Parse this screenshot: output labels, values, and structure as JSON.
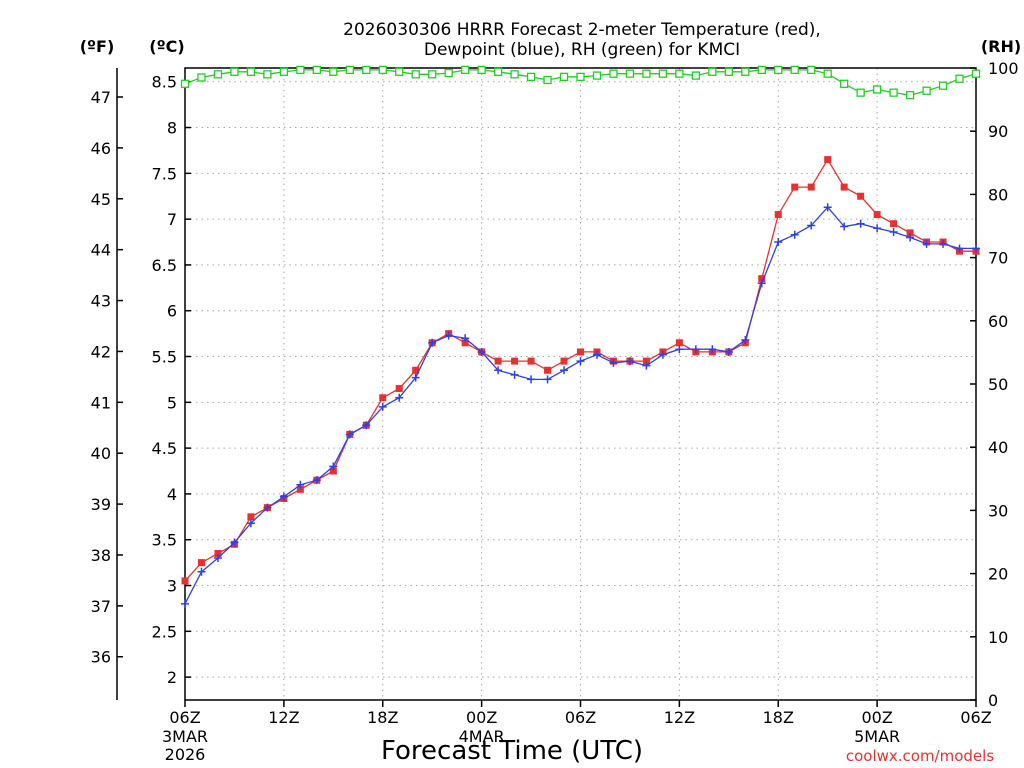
{
  "chart_data": {
    "type": "line",
    "title_line1": "2026030306 HRRR Forecast 2-meter Temperature (red),",
    "title_line2": "Dewpoint (blue), RH (green) for KMCI",
    "xlabel": "Forecast Time (UTC)",
    "credit": "coolwx.com/models",
    "units": {
      "left_f": "(ºF)",
      "left_c": "(ºC)",
      "right_rh": "(RH)"
    },
    "x_range_hours": [
      0,
      48
    ],
    "ylim_c": [
      1.75,
      8.65
    ],
    "ylim_f": [
      35.15,
      47.57
    ],
    "ylim_rh": [
      0,
      100
    ],
    "grid": true,
    "x_ticks": [
      {
        "hour": 0,
        "label": "06Z",
        "sub1": "3MAR",
        "sub2": "2026"
      },
      {
        "hour": 6,
        "label": "12Z",
        "sub1": "",
        "sub2": ""
      },
      {
        "hour": 12,
        "label": "18Z",
        "sub1": "",
        "sub2": ""
      },
      {
        "hour": 18,
        "label": "00Z",
        "sub1": "4MAR",
        "sub2": ""
      },
      {
        "hour": 24,
        "label": "06Z",
        "sub1": "",
        "sub2": ""
      },
      {
        "hour": 30,
        "label": "12Z",
        "sub1": "",
        "sub2": ""
      },
      {
        "hour": 36,
        "label": "18Z",
        "sub1": "",
        "sub2": ""
      },
      {
        "hour": 42,
        "label": "00Z",
        "sub1": "5MAR",
        "sub2": ""
      },
      {
        "hour": 48,
        "label": "06Z",
        "sub1": "",
        "sub2": ""
      }
    ],
    "y_ticks_c": [
      "2",
      "2.5",
      "3",
      "3.5",
      "4",
      "4.5",
      "5",
      "5.5",
      "6",
      "6.5",
      "7",
      "7.5",
      "8",
      "8.5"
    ],
    "y_ticks_f": [
      "36",
      "37",
      "38",
      "39",
      "40",
      "41",
      "42",
      "43",
      "44",
      "45",
      "46",
      "47"
    ],
    "y_ticks_rh": [
      "0",
      "10",
      "20",
      "30",
      "40",
      "50",
      "60",
      "70",
      "80",
      "90",
      "100"
    ],
    "x_hours": [
      0,
      1,
      2,
      3,
      4,
      5,
      6,
      7,
      8,
      9,
      10,
      11,
      12,
      13,
      14,
      15,
      16,
      17,
      18,
      19,
      20,
      21,
      22,
      23,
      24,
      25,
      26,
      27,
      28,
      29,
      30,
      31,
      32,
      33,
      34,
      35,
      36,
      37,
      38,
      39,
      40,
      41,
      42,
      43,
      44,
      45,
      46,
      47,
      48
    ],
    "series": [
      {
        "name": "Temperature",
        "color": "#e83030",
        "marker": "square",
        "values": [
          3.05,
          3.25,
          3.35,
          3.45,
          3.75,
          3.85,
          3.95,
          4.05,
          4.15,
          4.25,
          4.65,
          4.75,
          5.05,
          5.15,
          5.35,
          5.65,
          5.75,
          5.65,
          5.55,
          5.45,
          5.45,
          5.45,
          5.35,
          5.45,
          5.55,
          5.55,
          5.45,
          5.45,
          5.45,
          5.55,
          5.65,
          5.55,
          5.55,
          5.55,
          5.65,
          6.35,
          7.05,
          7.35,
          7.35,
          7.65,
          7.35,
          7.25,
          7.05,
          6.95,
          6.85,
          6.75,
          6.75,
          6.65,
          6.65
        ]
      },
      {
        "name": "Dewpoint",
        "color": "#3040e8",
        "marker": "plus",
        "values": [
          2.8,
          3.15,
          3.3,
          3.47,
          3.68,
          3.85,
          3.97,
          4.1,
          4.15,
          4.3,
          4.65,
          4.75,
          4.95,
          5.05,
          5.27,
          5.65,
          5.73,
          5.7,
          5.55,
          5.35,
          5.3,
          5.25,
          5.25,
          5.35,
          5.45,
          5.52,
          5.43,
          5.45,
          5.4,
          5.52,
          5.58,
          5.58,
          5.58,
          5.55,
          5.68,
          6.3,
          6.75,
          6.83,
          6.93,
          7.13,
          6.92,
          6.95,
          6.9,
          6.86,
          6.8,
          6.73,
          6.73,
          6.68,
          6.68
        ]
      },
      {
        "name": "RH",
        "color": "#20d020",
        "marker": "open-square",
        "values": [
          97.5,
          98.5,
          99,
          99.4,
          99.4,
          99,
          99.4,
          99.7,
          99.7,
          99.4,
          99.7,
          99.7,
          99.7,
          99.4,
          99,
          99,
          99.2,
          99.7,
          99.7,
          99.4,
          99,
          98.6,
          98.1,
          98.6,
          98.6,
          98.8,
          99.1,
          99.1,
          99.1,
          99.1,
          99.1,
          98.8,
          99.4,
          99.4,
          99.4,
          99.7,
          99.7,
          99.7,
          99.7,
          99.1,
          97.5,
          96.1,
          96.6,
          96.1,
          95.7,
          96.4,
          97.2,
          98.3,
          99.1
        ]
      }
    ]
  }
}
